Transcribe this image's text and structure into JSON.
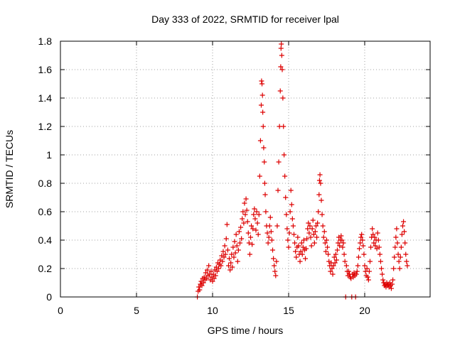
{
  "chart_data": {
    "type": "scatter",
    "title": "Day 333 of 2022, SRMTID for receiver lpal",
    "xlabel": "GPS time / hours",
    "ylabel": "SRMTID / TECUs",
    "xlim": [
      0,
      24.3
    ],
    "ylim": [
      0,
      1.8
    ],
    "xticks": [
      0,
      5,
      10,
      15,
      20
    ],
    "yticks": [
      0,
      0.2,
      0.4,
      0.6,
      0.8,
      1,
      1.2,
      1.4,
      1.6,
      1.8
    ],
    "xtick_labels": [
      "0",
      "5",
      "10",
      "15",
      "20"
    ],
    "ytick_labels": [
      "0",
      "0.2",
      "0.4",
      "0.6",
      "0.8",
      "1",
      "1.2",
      "1.4",
      "1.6",
      "1.8"
    ],
    "grid": true,
    "marker": "plus",
    "color": "#dd0000",
    "series": [
      {
        "name": "SRMTID",
        "points": [
          [
            9.0,
            0.0
          ],
          [
            9.05,
            0.04
          ],
          [
            9.1,
            0.07
          ],
          [
            9.15,
            0.05
          ],
          [
            9.2,
            0.09
          ],
          [
            9.25,
            0.11
          ],
          [
            9.3,
            0.08
          ],
          [
            9.35,
            0.13
          ],
          [
            9.4,
            0.1
          ],
          [
            9.45,
            0.14
          ],
          [
            9.5,
            0.12
          ],
          [
            9.55,
            0.17
          ],
          [
            9.6,
            0.13
          ],
          [
            9.65,
            0.19
          ],
          [
            9.7,
            0.15
          ],
          [
            9.75,
            0.22
          ],
          [
            9.8,
            0.16
          ],
          [
            9.85,
            0.12
          ],
          [
            9.9,
            0.18
          ],
          [
            9.95,
            0.14
          ],
          [
            10.0,
            0.11
          ],
          [
            10.05,
            0.16
          ],
          [
            10.1,
            0.13
          ],
          [
            10.15,
            0.19
          ],
          [
            10.2,
            0.15
          ],
          [
            10.25,
            0.21
          ],
          [
            10.3,
            0.18
          ],
          [
            10.35,
            0.24
          ],
          [
            10.4,
            0.2
          ],
          [
            10.45,
            0.23
          ],
          [
            10.5,
            0.26
          ],
          [
            10.55,
            0.22
          ],
          [
            10.6,
            0.29
          ],
          [
            10.65,
            0.25
          ],
          [
            10.7,
            0.32
          ],
          [
            10.75,
            0.28
          ],
          [
            10.8,
            0.36
          ],
          [
            10.85,
            0.3
          ],
          [
            10.9,
            0.41
          ],
          [
            10.95,
            0.51
          ],
          [
            11.0,
            0.33
          ],
          [
            11.05,
            0.22
          ],
          [
            11.1,
            0.27
          ],
          [
            11.15,
            0.19
          ],
          [
            11.2,
            0.24
          ],
          [
            11.25,
            0.3
          ],
          [
            11.3,
            0.21
          ],
          [
            11.35,
            0.35
          ],
          [
            11.4,
            0.28
          ],
          [
            11.45,
            0.39
          ],
          [
            11.5,
            0.31
          ],
          [
            11.55,
            0.44
          ],
          [
            11.6,
            0.36
          ],
          [
            11.65,
            0.25
          ],
          [
            11.7,
            0.33
          ],
          [
            11.75,
            0.46
          ],
          [
            11.8,
            0.38
          ],
          [
            11.85,
            0.49
          ],
          [
            11.9,
            0.41
          ],
          [
            11.95,
            0.55
          ],
          [
            12.0,
            0.6
          ],
          [
            12.05,
            0.52
          ],
          [
            12.1,
            0.66
          ],
          [
            12.15,
            0.58
          ],
          [
            12.2,
            0.69
          ],
          [
            12.25,
            0.61
          ],
          [
            12.3,
            0.53
          ],
          [
            12.35,
            0.45
          ],
          [
            12.4,
            0.38
          ],
          [
            12.45,
            0.3
          ],
          [
            12.5,
            0.42
          ],
          [
            12.55,
            0.5
          ],
          [
            12.6,
            0.37
          ],
          [
            12.65,
            0.48
          ],
          [
            12.7,
            0.58
          ],
          [
            12.75,
            0.62
          ],
          [
            12.8,
            0.55
          ],
          [
            12.85,
            0.47
          ],
          [
            12.9,
            0.6
          ],
          [
            12.95,
            0.52
          ],
          [
            13.0,
            0.44
          ],
          [
            13.05,
            0.58
          ],
          [
            13.1,
            0.85
          ],
          [
            13.15,
            1.1
          ],
          [
            13.2,
            1.35
          ],
          [
            13.22,
            1.52
          ],
          [
            13.25,
            1.5
          ],
          [
            13.28,
            1.42
          ],
          [
            13.3,
            1.3
          ],
          [
            13.33,
            1.2
          ],
          [
            13.36,
            1.05
          ],
          [
            13.4,
            0.95
          ],
          [
            13.43,
            0.8
          ],
          [
            13.46,
            0.72
          ],
          [
            13.5,
            0.6
          ],
          [
            13.55,
            0.5
          ],
          [
            13.6,
            0.45
          ],
          [
            13.65,
            0.38
          ],
          [
            13.7,
            0.42
          ],
          [
            13.75,
            0.5
          ],
          [
            13.8,
            0.56
          ],
          [
            13.85,
            0.46
          ],
          [
            13.9,
            0.4
          ],
          [
            13.95,
            0.33
          ],
          [
            14.0,
            0.27
          ],
          [
            14.05,
            0.22
          ],
          [
            14.1,
            0.18
          ],
          [
            14.15,
            0.15
          ],
          [
            14.2,
            0.25
          ],
          [
            14.25,
            0.5
          ],
          [
            14.3,
            0.75
          ],
          [
            14.35,
            0.95
          ],
          [
            14.4,
            1.2
          ],
          [
            14.45,
            1.45
          ],
          [
            14.48,
            1.62
          ],
          [
            14.5,
            1.75
          ],
          [
            14.52,
            1.78
          ],
          [
            14.55,
            1.7
          ],
          [
            14.58,
            1.6
          ],
          [
            14.62,
            1.4
          ],
          [
            14.66,
            1.2
          ],
          [
            14.7,
            1.0
          ],
          [
            14.75,
            0.85
          ],
          [
            14.8,
            0.7
          ],
          [
            14.85,
            0.58
          ],
          [
            14.9,
            0.48
          ],
          [
            14.95,
            0.4
          ],
          [
            15.0,
            0.35
          ],
          [
            15.05,
            0.45
          ],
          [
            15.1,
            0.6
          ],
          [
            15.15,
            0.75
          ],
          [
            15.2,
            0.65
          ],
          [
            15.25,
            0.55
          ],
          [
            15.3,
            0.5
          ],
          [
            15.35,
            0.44
          ],
          [
            15.4,
            0.38
          ],
          [
            15.45,
            0.32
          ],
          [
            15.5,
            0.28
          ],
          [
            15.55,
            0.35
          ],
          [
            15.6,
            0.42
          ],
          [
            15.65,
            0.36
          ],
          [
            15.7,
            0.3
          ],
          [
            15.75,
            0.25
          ],
          [
            15.8,
            0.32
          ],
          [
            15.85,
            0.38
          ],
          [
            15.9,
            0.3
          ],
          [
            15.95,
            0.35
          ],
          [
            16.0,
            0.4
          ],
          [
            16.05,
            0.33
          ],
          [
            16.1,
            0.27
          ],
          [
            16.15,
            0.34
          ],
          [
            16.2,
            0.41
          ],
          [
            16.25,
            0.48
          ],
          [
            16.3,
            0.52
          ],
          [
            16.35,
            0.45
          ],
          [
            16.4,
            0.5
          ],
          [
            16.45,
            0.42
          ],
          [
            16.5,
            0.36
          ],
          [
            16.55,
            0.48
          ],
          [
            16.6,
            0.54
          ],
          [
            16.65,
            0.44
          ],
          [
            16.7,
            0.38
          ],
          [
            16.75,
            0.46
          ],
          [
            16.8,
            0.5
          ],
          [
            16.85,
            0.42
          ],
          [
            16.9,
            0.52
          ],
          [
            16.95,
            0.6
          ],
          [
            17.0,
            0.72
          ],
          [
            17.03,
            0.82
          ],
          [
            17.06,
            0.86
          ],
          [
            17.1,
            0.8
          ],
          [
            17.15,
            0.68
          ],
          [
            17.2,
            0.58
          ],
          [
            17.25,
            0.5
          ],
          [
            17.3,
            0.42
          ],
          [
            17.35,
            0.46
          ],
          [
            17.4,
            0.38
          ],
          [
            17.45,
            0.32
          ],
          [
            17.5,
            0.4
          ],
          [
            17.55,
            0.35
          ],
          [
            17.6,
            0.3
          ],
          [
            17.65,
            0.25
          ],
          [
            17.7,
            0.22
          ],
          [
            17.75,
            0.18
          ],
          [
            17.8,
            0.24
          ],
          [
            17.85,
            0.2
          ],
          [
            17.9,
            0.16
          ],
          [
            17.95,
            0.22
          ],
          [
            18.0,
            0.28
          ],
          [
            18.05,
            0.24
          ],
          [
            18.1,
            0.3
          ],
          [
            18.15,
            0.26
          ],
          [
            18.2,
            0.33
          ],
          [
            18.25,
            0.38
          ],
          [
            18.3,
            0.42
          ],
          [
            18.35,
            0.36
          ],
          [
            18.4,
            0.4
          ],
          [
            18.45,
            0.43
          ],
          [
            18.5,
            0.4
          ],
          [
            18.55,
            0.35
          ],
          [
            18.6,
            0.38
          ],
          [
            18.65,
            0.3
          ],
          [
            18.7,
            0.25
          ],
          [
            18.75,
            0.0
          ],
          [
            18.8,
            0.22
          ],
          [
            18.85,
            0.18
          ],
          [
            18.9,
            0.15
          ],
          [
            18.95,
            0.18
          ],
          [
            19.0,
            0.16
          ],
          [
            19.05,
            0.14
          ],
          [
            19.1,
            0.13
          ],
          [
            19.15,
            0.0
          ],
          [
            19.2,
            0.16
          ],
          [
            19.25,
            0.14
          ],
          [
            19.3,
            0.17
          ],
          [
            19.35,
            0.15
          ],
          [
            19.4,
            0.0
          ],
          [
            19.45,
            0.16
          ],
          [
            19.5,
            0.18
          ],
          [
            19.55,
            0.22
          ],
          [
            19.6,
            0.28
          ],
          [
            19.65,
            0.34
          ],
          [
            19.7,
            0.38
          ],
          [
            19.75,
            0.42
          ],
          [
            19.8,
            0.44
          ],
          [
            19.85,
            0.4
          ],
          [
            19.9,
            0.36
          ],
          [
            19.95,
            0.3
          ],
          [
            20.0,
            0.22
          ],
          [
            20.05,
            0.18
          ],
          [
            20.1,
            0.15
          ],
          [
            20.15,
            0.2
          ],
          [
            20.2,
            0.14
          ],
          [
            20.25,
            0.12
          ],
          [
            20.3,
            0.18
          ],
          [
            20.35,
            0.25
          ],
          [
            20.4,
            0.35
          ],
          [
            20.45,
            0.42
          ],
          [
            20.5,
            0.48
          ],
          [
            20.55,
            0.44
          ],
          [
            20.6,
            0.38
          ],
          [
            20.65,
            0.42
          ],
          [
            20.7,
            0.36
          ],
          [
            20.75,
            0.4
          ],
          [
            20.8,
            0.34
          ],
          [
            20.85,
            0.45
          ],
          [
            20.9,
            0.4
          ],
          [
            20.95,
            0.35
          ],
          [
            21.0,
            0.3
          ],
          [
            21.05,
            0.25
          ],
          [
            21.1,
            0.2
          ],
          [
            21.15,
            0.16
          ],
          [
            21.2,
            0.12
          ],
          [
            21.25,
            0.1
          ],
          [
            21.3,
            0.08
          ],
          [
            21.35,
            0.09
          ],
          [
            21.4,
            0.07
          ],
          [
            21.45,
            0.1
          ],
          [
            21.5,
            0.08
          ],
          [
            21.55,
            0.09
          ],
          [
            21.6,
            0.07
          ],
          [
            21.65,
            0.1
          ],
          [
            21.7,
            0.08
          ],
          [
            21.75,
            0.06
          ],
          [
            21.8,
            0.09
          ],
          [
            21.85,
            0.12
          ],
          [
            21.9,
            0.2
          ],
          [
            21.95,
            0.28
          ],
          [
            22.0,
            0.35
          ],
          [
            22.05,
            0.42
          ],
          [
            22.1,
            0.48
          ],
          [
            22.15,
            0.38
          ],
          [
            22.2,
            0.3
          ],
          [
            22.25,
            0.25
          ],
          [
            22.3,
            0.2
          ],
          [
            22.35,
            0.28
          ],
          [
            22.4,
            0.35
          ],
          [
            22.45,
            0.44
          ],
          [
            22.5,
            0.5
          ],
          [
            22.55,
            0.53
          ],
          [
            22.6,
            0.46
          ],
          [
            22.65,
            0.38
          ],
          [
            22.7,
            0.3
          ],
          [
            22.75,
            0.25
          ],
          [
            22.8,
            0.22
          ]
        ]
      }
    ]
  }
}
